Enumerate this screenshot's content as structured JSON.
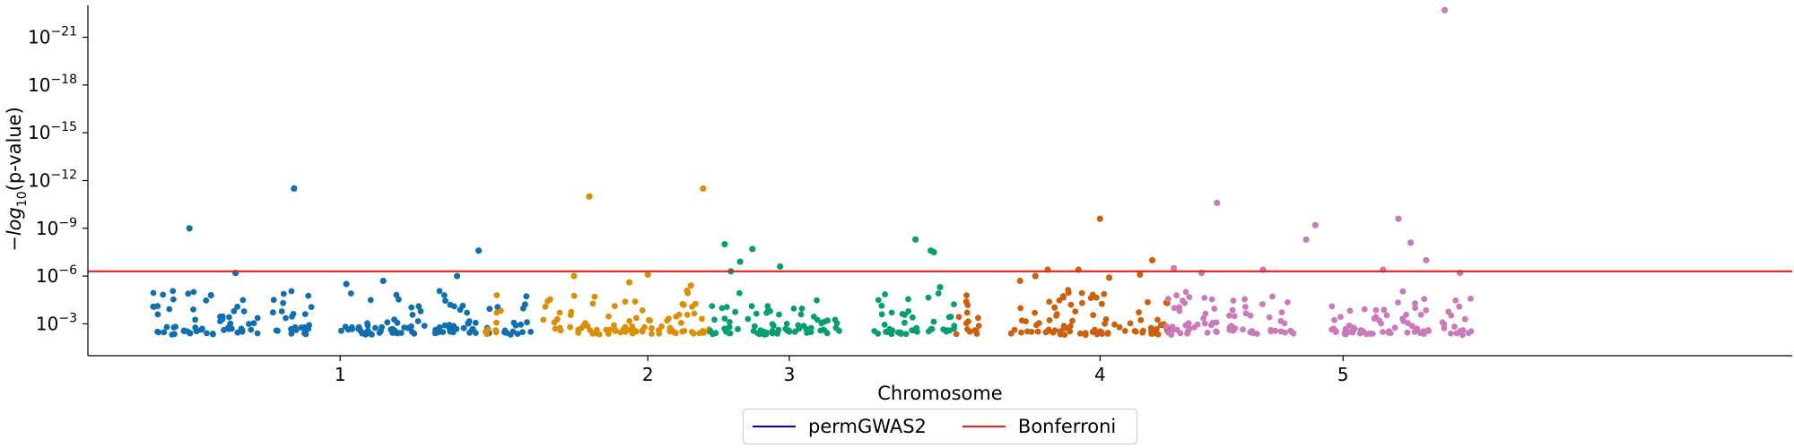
{
  "chart_data": {
    "type": "scatter",
    "title": "",
    "xlabel": "Chromosome",
    "ylabel_prefix": "−",
    "ylabel_italic": "log",
    "ylabel_sub": "10",
    "ylabel_suffix": "(p-value)",
    "ylim_exponent": [
      -1,
      -23
    ],
    "ytick_values": [
      -3,
      -6,
      -9,
      -12,
      -15,
      -18,
      -21
    ],
    "ytick_base": "10",
    "xlim": [
      0.18,
      5.72
    ],
    "xticks": [
      {
        "label": "1",
        "value": 1.0
      },
      {
        "label": "2",
        "value": 2.0
      },
      {
        "label": "3",
        "value": 2.46
      },
      {
        "label": "4",
        "value": 3.47
      },
      {
        "label": "5",
        "value": 4.26
      }
    ],
    "legend_position": "lower center, outside",
    "thresholds": [
      {
        "name": "permGWAS2",
        "color": "#0000cc",
        "exponent": null
      },
      {
        "name": "Bonferroni",
        "color": "#e8201a",
        "exponent": -6.3
      }
    ],
    "chromosomes": [
      {
        "name": "1",
        "color": "#0f6fb0",
        "x_start": 0.38,
        "x_end": 1.86,
        "spans": [
          [
            0.39,
            0.74
          ],
          [
            0.78,
            0.93
          ],
          [
            1.0,
            1.28
          ],
          [
            1.3,
            1.62
          ]
        ],
        "outliers": [
          {
            "x": 0.51,
            "exp": -9.0
          },
          {
            "x": 0.85,
            "exp": -11.5
          },
          {
            "x": 1.45,
            "exp": -7.6
          },
          {
            "x": 0.66,
            "exp": -6.2
          },
          {
            "x": 1.38,
            "exp": -6.0
          },
          {
            "x": 1.14,
            "exp": -5.7
          },
          {
            "x": 1.02,
            "exp": -5.5
          },
          {
            "x": 0.58,
            "exp": -4.8
          }
        ]
      },
      {
        "name": "2",
        "color": "#dc8e06",
        "x_start": 1.47,
        "x_end": 2.2,
        "spans": [
          [
            1.47,
            1.53
          ],
          [
            1.66,
            1.72
          ],
          [
            1.74,
            2.2
          ]
        ],
        "outliers": [
          {
            "x": 1.81,
            "exp": -11.0
          },
          {
            "x": 2.18,
            "exp": -11.5
          },
          {
            "x": 1.76,
            "exp": -6.0
          },
          {
            "x": 2.0,
            "exp": -6.1
          },
          {
            "x": 2.14,
            "exp": -5.4
          },
          {
            "x": 1.94,
            "exp": -5.6
          }
        ]
      },
      {
        "name": "3",
        "color": "#089e74",
        "x_start": 2.2,
        "x_end": 3.0,
        "spans": [
          [
            2.2,
            2.63
          ],
          [
            2.73,
            2.9
          ],
          [
            2.91,
            3.0
          ]
        ],
        "outliers": [
          {
            "x": 2.25,
            "exp": -8.0
          },
          {
            "x": 2.34,
            "exp": -7.7
          },
          {
            "x": 2.3,
            "exp": -6.9
          },
          {
            "x": 2.27,
            "exp": -6.3
          },
          {
            "x": 2.43,
            "exp": -6.6
          },
          {
            "x": 2.87,
            "exp": -8.3
          },
          {
            "x": 2.92,
            "exp": -7.6
          },
          {
            "x": 2.93,
            "exp": -7.5
          },
          {
            "x": 2.95,
            "exp": -5.3
          }
        ]
      },
      {
        "name": "4",
        "color": "#ce5f0c",
        "x_start": 2.99,
        "x_end": 3.69,
        "spans": [
          [
            2.99,
            3.08
          ],
          [
            3.18,
            3.69
          ]
        ],
        "outliers": [
          {
            "x": 3.47,
            "exp": -9.6
          },
          {
            "x": 3.64,
            "exp": -7.0
          },
          {
            "x": 3.3,
            "exp": -6.4
          },
          {
            "x": 3.4,
            "exp": -6.4
          },
          {
            "x": 3.6,
            "exp": -6.1
          },
          {
            "x": 3.26,
            "exp": -6.0
          },
          {
            "x": 3.21,
            "exp": -5.7
          },
          {
            "x": 3.5,
            "exp": -5.9
          }
        ]
      },
      {
        "name": "5",
        "color": "#cc79bb",
        "x_start": 3.68,
        "x_end": 4.68,
        "spans": [
          [
            3.68,
            4.1
          ],
          [
            4.22,
            4.68
          ]
        ],
        "outliers": [
          {
            "x": 4.59,
            "exp": -22.7
          },
          {
            "x": 3.85,
            "exp": -10.6
          },
          {
            "x": 4.44,
            "exp": -9.6
          },
          {
            "x": 4.14,
            "exp": -8.3
          },
          {
            "x": 4.17,
            "exp": -9.2
          },
          {
            "x": 4.48,
            "exp": -8.1
          },
          {
            "x": 4.53,
            "exp": -7.0
          },
          {
            "x": 3.71,
            "exp": -6.5
          },
          {
            "x": 4.0,
            "exp": -6.4
          },
          {
            "x": 4.39,
            "exp": -6.4
          },
          {
            "x": 4.64,
            "exp": -6.2
          },
          {
            "x": 3.8,
            "exp": -6.2
          }
        ]
      }
    ]
  }
}
